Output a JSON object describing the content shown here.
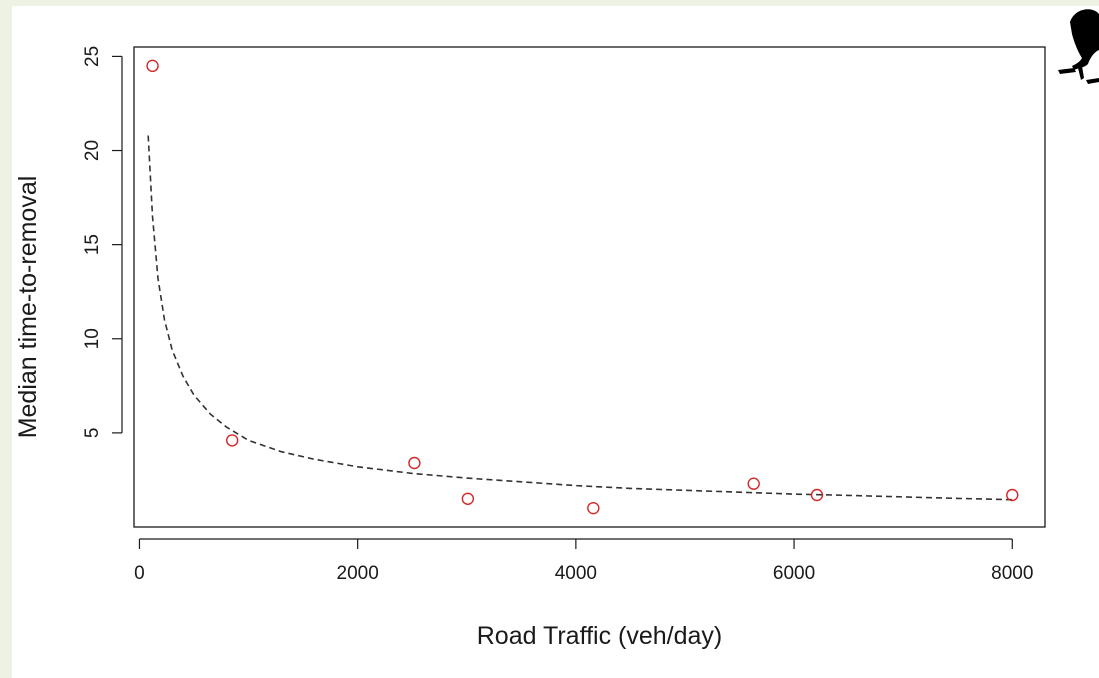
{
  "chart_data": {
    "type": "scatter",
    "xlabel": "Road Traffic (veh/day)",
    "ylabel": "Median time-to-removal",
    "xlim": [
      -50,
      8300
    ],
    "ylim": [
      0,
      25.5
    ],
    "x_ticks": [
      0,
      2000,
      4000,
      6000,
      8000
    ],
    "y_ticks": [
      5,
      10,
      15,
      20,
      25
    ],
    "grid": false,
    "legend": "none",
    "series": [
      {
        "kind": "points",
        "marker": "open-circle",
        "color": "#d62728",
        "points": [
          {
            "x": 120,
            "y": 24.5
          },
          {
            "x": 850,
            "y": 4.6
          },
          {
            "x": 2520,
            "y": 3.4
          },
          {
            "x": 3010,
            "y": 1.5
          },
          {
            "x": 4160,
            "y": 1.0
          },
          {
            "x": 5630,
            "y": 2.3
          },
          {
            "x": 6210,
            "y": 1.7
          },
          {
            "x": 8000,
            "y": 1.7
          }
        ]
      },
      {
        "kind": "fitted-curve",
        "style": "dashed",
        "color": "#333333",
        "points": [
          {
            "x": 80,
            "y": 20.8
          },
          {
            "x": 120,
            "y": 16.5
          },
          {
            "x": 170,
            "y": 13.2
          },
          {
            "x": 230,
            "y": 11.0
          },
          {
            "x": 300,
            "y": 9.4
          },
          {
            "x": 400,
            "y": 8.0
          },
          {
            "x": 500,
            "y": 7.0
          },
          {
            "x": 650,
            "y": 6.0
          },
          {
            "x": 800,
            "y": 5.3
          },
          {
            "x": 1000,
            "y": 4.6
          },
          {
            "x": 1300,
            "y": 4.0
          },
          {
            "x": 1600,
            "y": 3.6
          },
          {
            "x": 2000,
            "y": 3.2
          },
          {
            "x": 2500,
            "y": 2.85
          },
          {
            "x": 3000,
            "y": 2.6
          },
          {
            "x": 3500,
            "y": 2.4
          },
          {
            "x": 4000,
            "y": 2.2
          },
          {
            "x": 4500,
            "y": 2.05
          },
          {
            "x": 5000,
            "y": 1.95
          },
          {
            "x": 5500,
            "y": 1.85
          },
          {
            "x": 6000,
            "y": 1.75
          },
          {
            "x": 6500,
            "y": 1.68
          },
          {
            "x": 7000,
            "y": 1.6
          },
          {
            "x": 7500,
            "y": 1.52
          },
          {
            "x": 8000,
            "y": 1.45
          }
        ]
      }
    ]
  },
  "icons": {
    "silhouette": "salamander-silhouette-icon"
  }
}
